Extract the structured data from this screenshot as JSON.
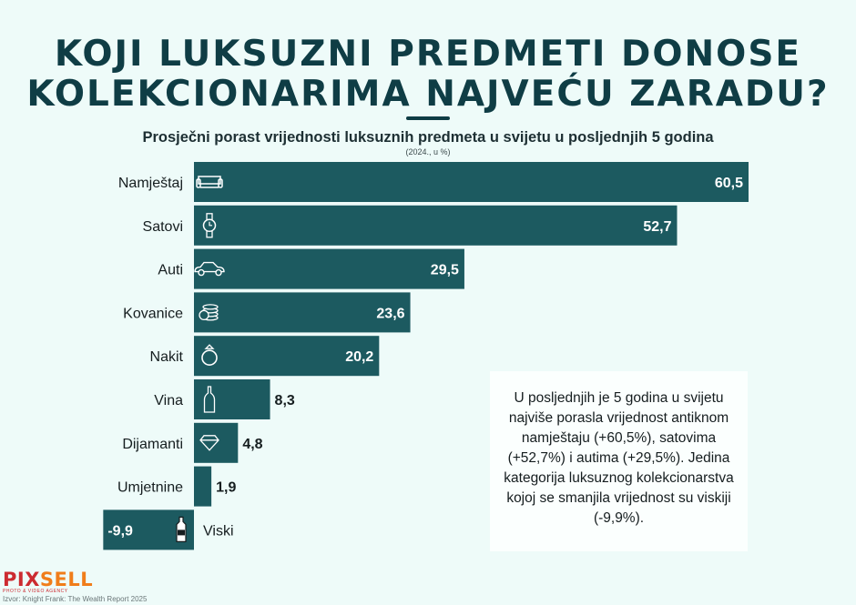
{
  "header": {
    "title_line1": "KOJI LUKSUZNI PREDMETI DONOSE",
    "title_line2": "KOLEKCIONARIMA NAJVEĆU ZARADU?",
    "subtitle": "Prosječni porast vrijednosti luksuznih predmeta u svijetu u posljednjih 5 godina",
    "unit_note": "(2024., u %)"
  },
  "colors": {
    "bar": "#1c5a60",
    "background": "#eefbf9",
    "title": "#0f3d45"
  },
  "chart_data": {
    "type": "bar",
    "orientation": "horizontal",
    "categories": [
      "Namještaj",
      "Satovi",
      "Auti",
      "Kovanice",
      "Nakit",
      "Vina",
      "Dijamanti",
      "Umjetnine",
      "Viski"
    ],
    "values": [
      60.5,
      52.7,
      29.5,
      23.6,
      20.2,
      8.3,
      4.8,
      1.9,
      -9.9
    ],
    "value_labels": [
      "60,5",
      "52,7",
      "29,5",
      "23,6",
      "20,2",
      "8,3",
      "4,8",
      "1,9",
      "-9,9"
    ],
    "icons": [
      "sofa-icon",
      "watch-icon",
      "car-icon",
      "coins-icon",
      "ring-icon",
      "wine-bottle-icon",
      "diamond-icon",
      "",
      "whisky-bottle-icon"
    ],
    "title": "Prosječni porast vrijednosti luksuznih predmeta u svijetu u posljednjih 5 godina",
    "xlabel": "",
    "ylabel": "",
    "xlim": [
      -9.9,
      60.5
    ],
    "grid": false,
    "legend": "none"
  },
  "note": {
    "text": "U posljednjih je 5 godina u svijetu najviše porasla vrijednost antiknom namještaju (+60,5%), satovima (+52,7%) i autima (+29,5%). Jedina kategorija luksuznog kolekcionarstva kojoj se smanjila vrijednost su viskiji (-9,9%)."
  },
  "branding": {
    "logo_part1": "PIX",
    "logo_part2": "SELL",
    "logo_tagline": "PHOTO & VIDEO AGENCY",
    "source": "Izvor: Knight Frank: The Wealth Report 2025"
  }
}
